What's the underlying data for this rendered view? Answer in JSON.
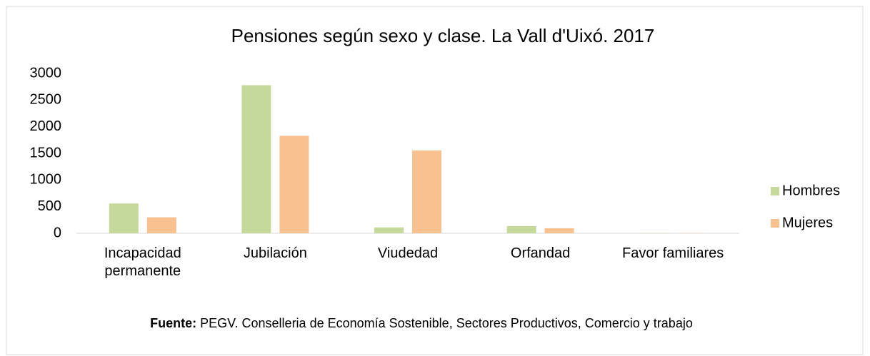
{
  "chart_data": {
    "type": "bar",
    "title": "Pensiones según sexo y clase. La Vall d'Uixó. 2017",
    "categories": [
      "Incapacidad permanente",
      "Jubilación",
      "Viudedad",
      "Orfandad",
      "Favor familiares"
    ],
    "series": [
      {
        "name": "Hombres",
        "color": "#c5d99b",
        "values": [
          560,
          2780,
          110,
          135,
          5
        ]
      },
      {
        "name": "Mujeres",
        "color": "#f9c090",
        "values": [
          300,
          1830,
          1555,
          95,
          3
        ]
      }
    ],
    "ylim": [
      0,
      3000
    ],
    "yticks": [
      0,
      500,
      1000,
      1500,
      2000,
      2500,
      3000
    ],
    "grid": false,
    "legend": "right",
    "source_label": "Fuente:",
    "source": "PEGV. Conselleria de Economía Sostenible, Sectores Productivos, Comercio y trabajo"
  }
}
